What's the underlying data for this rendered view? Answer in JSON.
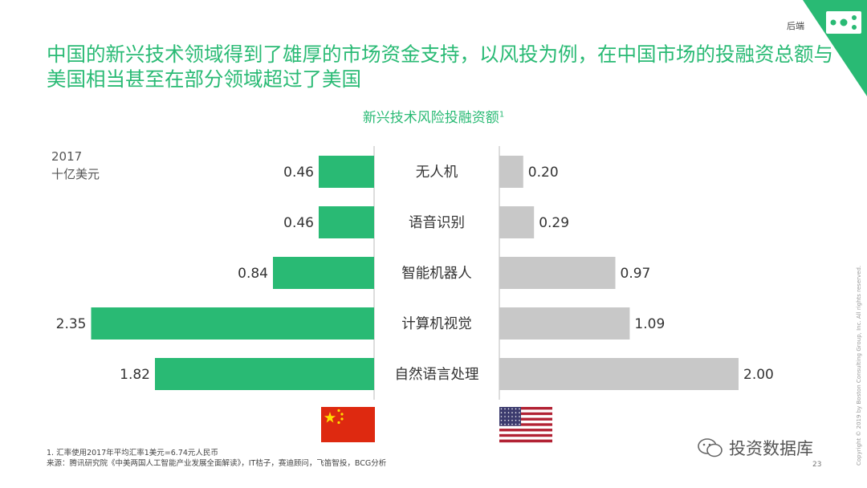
{
  "header": {
    "corner_label": "后端",
    "title": "中国的新兴技术领域得到了雄厚的市场资金支持，以风投为例，在中国市场的投融资总额与美国相当甚至在部分领域超过了美国",
    "subtitle": "新兴技术风险投融资额",
    "subtitle_sup": "1"
  },
  "unit": {
    "year": "2017",
    "label": "十亿美元"
  },
  "colors": {
    "china": "#29BA74",
    "usa": "#C8C8C8",
    "accent": "#29BA74"
  },
  "chart_data": {
    "type": "bar",
    "orientation": "horizontal-butterfly",
    "title": "新兴技术风险投融资额",
    "categories": [
      "无人机",
      "语音识别",
      "智能机器人",
      "计算机视觉",
      "自然语言处理"
    ],
    "series": [
      {
        "values": [
          0.46,
          0.46,
          0.84,
          2.35,
          1.82
        ],
        "labels": [
          "0.46",
          "0.46",
          "0.84",
          "2.35",
          "1.82"
        ],
        "flag": "china-flag"
      },
      {
        "values": [
          0.2,
          0.29,
          0.97,
          1.09,
          2.0
        ],
        "labels": [
          "0.20",
          "0.29",
          "0.97",
          "1.09",
          "2.00"
        ],
        "flag": "usa-flag"
      }
    ],
    "unit": "十亿美元",
    "year": "2017"
  },
  "footnote": {
    "line1": "1. 汇率使用2017年平均汇率1美元=6.74元人民币",
    "line2": "来源：腾讯研究院《中美两国人工智能产业发展全面解读》，IT桔子，赛迪顾问，飞笛智投，BCG分析"
  },
  "copyright": "Copyright © 2019 by Boston Consulting Group, Inc. All rights reserved.",
  "watermark": "投资数据库",
  "page_number": "23"
}
